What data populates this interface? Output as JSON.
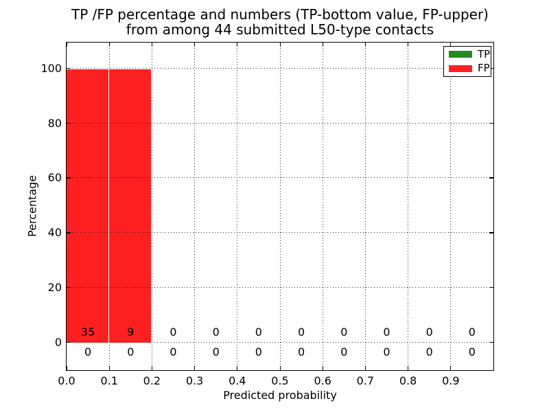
{
  "chart_data": {
    "type": "bar",
    "stacked": true,
    "title_lines": [
      "TP /FP percentage and numbers (TP-bottom value, FP-upper)",
      "from among 44 submitted L50-type contacts"
    ],
    "title": "TP /FP percentage and numbers (TP-bottom value, FP-upper) from among 44 submitted L50-type contacts",
    "xlabel": "Predicted probability",
    "ylabel": "Percentage",
    "bin_starts": [
      0.0,
      0.1,
      0.2,
      0.3,
      0.4,
      0.5,
      0.6,
      0.7,
      0.8,
      0.9
    ],
    "bin_width": 0.1,
    "xtick_labels": [
      "0.0",
      "0.1",
      "0.2",
      "0.3",
      "0.4",
      "0.5",
      "0.6",
      "0.7",
      "0.8",
      "0.9"
    ],
    "ytick_values": [
      0,
      20,
      40,
      60,
      80,
      100
    ],
    "xlim": [
      0.0,
      1.0
    ],
    "ylim": [
      -10,
      109
    ],
    "grid": true,
    "grid_style": "dotted",
    "legend_position": "upper right",
    "series": [
      {
        "name": "TP",
        "color": "#228b22",
        "counts_row": "bottom",
        "percent": [
          0,
          0,
          0,
          0,
          0,
          0,
          0,
          0,
          0,
          0
        ],
        "counts": [
          0,
          0,
          0,
          0,
          0,
          0,
          0,
          0,
          0,
          0
        ]
      },
      {
        "name": "FP",
        "color": "#fc2020",
        "counts_row": "top",
        "percent": [
          100,
          100,
          0,
          0,
          0,
          0,
          0,
          0,
          0,
          0
        ],
        "counts": [
          35,
          9,
          0,
          0,
          0,
          0,
          0,
          0,
          0,
          0
        ]
      }
    ]
  }
}
